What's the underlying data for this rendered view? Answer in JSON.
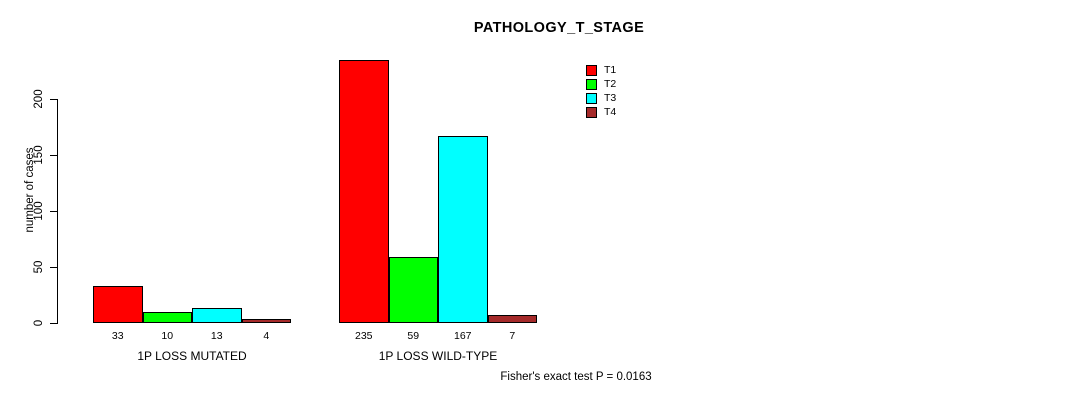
{
  "chart_data": {
    "type": "bar",
    "title": "PATHOLOGY_T_STAGE",
    "ylabel": "number of cases",
    "xlabel": "",
    "categories": [
      "1P LOSS MUTATED",
      "1P LOSS WILD-TYPE"
    ],
    "series": [
      {
        "name": "T1",
        "color": "#FF0000",
        "values": [
          33,
          235
        ]
      },
      {
        "name": "T2",
        "color": "#00FF00",
        "values": [
          10,
          59
        ]
      },
      {
        "name": "T3",
        "color": "#00FFFF",
        "values": [
          13,
          167
        ]
      },
      {
        "name": "T4",
        "color": "#A52A2A",
        "values": [
          4,
          7
        ]
      }
    ],
    "yticks": [
      0,
      50,
      100,
      150,
      200
    ],
    "ylim": [
      0,
      200
    ],
    "grid": false,
    "bar_value_labels_shown": true,
    "legend_position": "top-right",
    "legend_entries": [
      "T1",
      "T2",
      "T3",
      "T4"
    ],
    "annotation": "Fisher's exact test P = 0.0163",
    "axis_color": "#000000",
    "background_color": "#FFFFFF"
  }
}
